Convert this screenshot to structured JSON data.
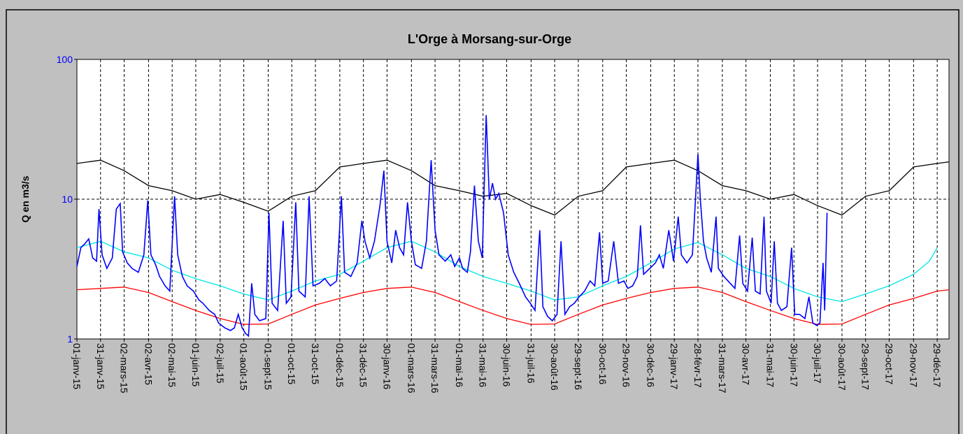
{
  "chart_data": {
    "type": "line",
    "title": "L'Orge à Morsang-sur-Orge",
    "y_label": "Q en m3/s",
    "log_y": true,
    "ylim": [
      1,
      100
    ],
    "yticks": [
      1,
      10,
      100
    ],
    "ytick_color": "#0000ff",
    "grid": true,
    "xlim": [
      0,
      1108
    ],
    "xticks": [
      {
        "value": 0,
        "label": "01-janv-15"
      },
      {
        "value": 30,
        "label": "31-janv-15"
      },
      {
        "value": 60,
        "label": "02-mars-15"
      },
      {
        "value": 91,
        "label": "02-avr-15"
      },
      {
        "value": 121,
        "label": "02-mai-15"
      },
      {
        "value": 151,
        "label": "01-juin-15"
      },
      {
        "value": 182,
        "label": "02-juil-15"
      },
      {
        "value": 212,
        "label": "01-août-15"
      },
      {
        "value": 243,
        "label": "01-sept-15"
      },
      {
        "value": 273,
        "label": "01-oct-15"
      },
      {
        "value": 303,
        "label": "31-oct-15"
      },
      {
        "value": 334,
        "label": "01-déc-15"
      },
      {
        "value": 364,
        "label": "31-déc-15"
      },
      {
        "value": 394,
        "label": "30-janv-16"
      },
      {
        "value": 425,
        "label": "01-mars-16"
      },
      {
        "value": 455,
        "label": "31-mars-16"
      },
      {
        "value": 486,
        "label": "01-mai-16"
      },
      {
        "value": 516,
        "label": "31-mai-16"
      },
      {
        "value": 546,
        "label": "30-juin-16"
      },
      {
        "value": 577,
        "label": "31-juil-16"
      },
      {
        "value": 607,
        "label": "30-août-16"
      },
      {
        "value": 637,
        "label": "29-sept-16"
      },
      {
        "value": 668,
        "label": "30-oct-16"
      },
      {
        "value": 698,
        "label": "29-nov-16"
      },
      {
        "value": 729,
        "label": "30-déc-16"
      },
      {
        "value": 759,
        "label": "29-janv-17"
      },
      {
        "value": 789,
        "label": "28-févr-17"
      },
      {
        "value": 820,
        "label": "31-mars-17"
      },
      {
        "value": 850,
        "label": "30-avr-17"
      },
      {
        "value": 881,
        "label": "31-mai-17"
      },
      {
        "value": 911,
        "label": "30-juin-17"
      },
      {
        "value": 941,
        "label": "30-juil-17"
      },
      {
        "value": 972,
        "label": "30-août-17"
      },
      {
        "value": 1002,
        "label": "29-sept-17"
      },
      {
        "value": 1032,
        "label": "29-oct-17"
      },
      {
        "value": 1063,
        "label": "29-nov-17"
      },
      {
        "value": 1093,
        "label": "29-déc-17"
      }
    ],
    "series": [
      {
        "color": "#000000",
        "x": [
          0,
          30,
          60,
          91,
          121,
          151,
          182,
          212,
          243,
          273,
          303,
          334,
          364,
          394,
          425,
          455,
          486,
          516,
          546,
          577,
          607,
          637,
          668,
          698,
          729,
          759,
          789,
          820,
          850,
          881,
          911,
          941,
          972,
          1002,
          1032,
          1063,
          1093,
          1108
        ],
        "values": [
          18,
          19,
          16,
          12.5,
          11.5,
          10,
          10.8,
          9.5,
          8.2,
          10.5,
          11.5,
          17,
          18,
          19,
          16,
          12.5,
          11.5,
          10.5,
          11,
          9,
          7.7,
          10.5,
          11.5,
          17,
          18,
          19,
          16,
          12.5,
          11.5,
          10,
          10.8,
          9,
          7.7,
          10.5,
          11.5,
          17,
          18,
          18.5
        ]
      },
      {
        "color": "#00e5e5",
        "x": [
          0,
          30,
          60,
          91,
          121,
          151,
          182,
          212,
          243,
          273,
          303,
          334,
          364,
          394,
          425,
          455,
          486,
          516,
          546,
          577,
          607,
          637,
          668,
          698,
          729,
          759,
          789,
          820,
          850,
          881,
          911,
          941,
          972,
          1002,
          1032,
          1063,
          1083,
          1093
        ],
        "values": [
          4.5,
          5,
          4.2,
          3.8,
          3.1,
          2.7,
          2.4,
          2.1,
          1.9,
          2.2,
          2.6,
          2.9,
          3.6,
          4.5,
          5,
          4.2,
          3.3,
          2.8,
          2.5,
          2.2,
          1.9,
          2,
          2.4,
          2.8,
          3.5,
          4.4,
          4.9,
          4,
          3.2,
          2.8,
          2.3,
          2,
          1.85,
          2.1,
          2.4,
          2.9,
          3.6,
          4.5
        ]
      },
      {
        "color": "#ff0000",
        "x": [
          0,
          30,
          60,
          91,
          121,
          151,
          182,
          212,
          243,
          273,
          303,
          334,
          364,
          394,
          425,
          455,
          486,
          516,
          546,
          577,
          607,
          637,
          668,
          698,
          729,
          759,
          789,
          820,
          850,
          881,
          911,
          941,
          972,
          1002,
          1032,
          1063,
          1093,
          1108
        ],
        "values": [
          2.25,
          2.3,
          2.35,
          2.15,
          1.85,
          1.6,
          1.4,
          1.27,
          1.28,
          1.5,
          1.75,
          1.95,
          2.15,
          2.3,
          2.35,
          2.15,
          1.85,
          1.6,
          1.4,
          1.27,
          1.28,
          1.5,
          1.75,
          1.95,
          2.15,
          2.3,
          2.35,
          2.15,
          1.85,
          1.6,
          1.4,
          1.27,
          1.28,
          1.5,
          1.75,
          1.95,
          2.2,
          2.25
        ]
      },
      {
        "color": "#0000ff",
        "x": [
          0,
          5,
          10,
          15,
          20,
          25,
          28,
          32,
          38,
          45,
          50,
          55,
          58,
          64,
          70,
          78,
          85,
          90,
          94,
          100,
          105,
          112,
          118,
          124,
          128,
          134,
          140,
          148,
          155,
          160,
          168,
          175,
          180,
          188,
          195,
          200,
          205,
          210,
          214,
          218,
          222,
          226,
          232,
          240,
          244,
          248,
          255,
          262,
          266,
          272,
          278,
          282,
          290,
          295,
          300,
          308,
          315,
          322,
          330,
          336,
          340,
          348,
          356,
          362,
          366,
          372,
          378,
          385,
          390,
          394,
          400,
          405,
          410,
          415,
          420,
          425,
          430,
          438,
          444,
          450,
          455,
          460,
          468,
          475,
          480,
          486,
          490,
          496,
          500,
          505,
          510,
          515,
          520,
          524,
          528,
          532,
          536,
          542,
          548,
          555,
          562,
          570,
          576,
          582,
          588,
          592,
          598,
          604,
          610,
          615,
          620,
          626,
          632,
          638,
          645,
          652,
          658,
          664,
          668,
          675,
          682,
          688,
          695,
          700,
          706,
          712,
          716,
          720,
          728,
          735,
          740,
          745,
          752,
          758,
          764,
          768,
          775,
          782,
          789,
          792,
          796,
          800,
          806,
          812,
          815,
          822,
          830,
          836,
          842,
          846,
          852,
          858,
          862,
          868,
          873,
          876,
          882,
          886,
          890,
          895,
          902,
          908,
          912,
          918,
          925,
          930,
          935,
          940,
          944,
          948,
          950,
          953
        ],
        "values": [
          3.3,
          4.5,
          4.8,
          5.2,
          3.8,
          3.6,
          8.5,
          4,
          3.2,
          3.8,
          8.5,
          9.3,
          4.2,
          3.5,
          3.2,
          3,
          4,
          9.8,
          4,
          3.4,
          2.8,
          2.4,
          2.2,
          10.5,
          4,
          2.8,
          2.4,
          2.2,
          1.9,
          1.8,
          1.6,
          1.5,
          1.3,
          1.2,
          1.15,
          1.2,
          1.5,
          1.2,
          1.1,
          1.05,
          2.5,
          1.5,
          1.35,
          1.4,
          8,
          1.8,
          1.6,
          7,
          1.8,
          2,
          9.5,
          2.2,
          2,
          10.5,
          2.4,
          2.5,
          2.7,
          2.4,
          2.6,
          10.5,
          3,
          2.8,
          3.5,
          7,
          5,
          3.8,
          5,
          9,
          16,
          5,
          3.5,
          6,
          4.5,
          4,
          9.5,
          5,
          3.4,
          3.2,
          5,
          19,
          6,
          4,
          3.6,
          4,
          3.3,
          3.8,
          3.2,
          3,
          4.2,
          12.5,
          5,
          3.8,
          40,
          10,
          13,
          10,
          11,
          8,
          4,
          3,
          2.5,
          2,
          1.8,
          1.6,
          6,
          1.7,
          1.45,
          1.35,
          1.5,
          5,
          1.5,
          1.7,
          1.8,
          2,
          2.2,
          2.6,
          2.4,
          5.8,
          2.5,
          2.6,
          5,
          2.5,
          2.6,
          2.3,
          2.4,
          2.8,
          6.5,
          2.9,
          3.2,
          3.5,
          4,
          3.2,
          6,
          3.6,
          7.5,
          4,
          3.5,
          4,
          21,
          10,
          5,
          3.8,
          3,
          7.5,
          3.2,
          2.8,
          2.5,
          2.3,
          5.5,
          2.5,
          2.2,
          5.3,
          2.2,
          2.1,
          7.5,
          2.2,
          1.8,
          5,
          1.8,
          1.6,
          1.7,
          4.5,
          1.5,
          1.5,
          1.4,
          2,
          1.3,
          1.25,
          1.3,
          3.5,
          1.6,
          8
        ]
      }
    ]
  }
}
